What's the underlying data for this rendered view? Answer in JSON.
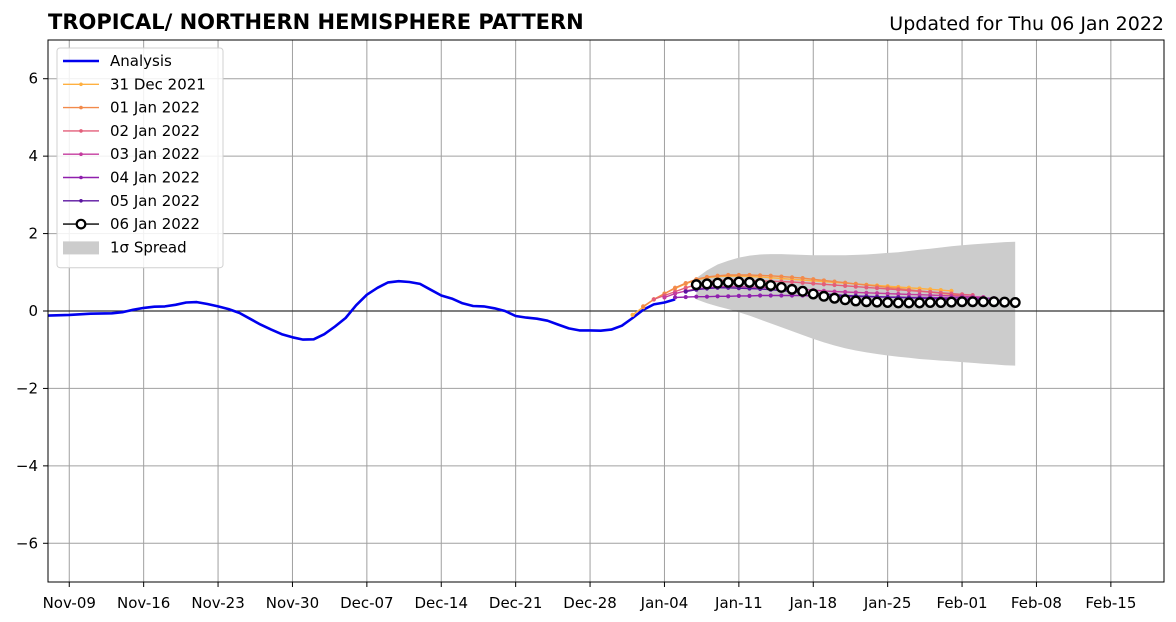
{
  "chart_data": {
    "type": "line",
    "title": "TROPICAL/ NORTHERN HEMISPHERE PATTERN",
    "subtitle": "Updated for Thu 06 Jan 2022",
    "xlabel": "",
    "ylabel": "",
    "xlim": [
      "2021-11-07",
      "2022-02-20"
    ],
    "ylim": [
      -7,
      7
    ],
    "x_ticks": [
      "Nov-09",
      "Nov-16",
      "Nov-23",
      "Nov-30",
      "Dec-07",
      "Dec-14",
      "Dec-21",
      "Dec-28",
      "Jan-04",
      "Jan-11",
      "Jan-18",
      "Jan-25",
      "Feb-01",
      "Feb-08",
      "Feb-15"
    ],
    "y_ticks": [
      -6,
      -4,
      -2,
      0,
      2,
      4,
      6
    ],
    "grid": true,
    "legend_position": "top-left",
    "analysis": {
      "name": "Analysis",
      "color": "#0000ee",
      "points": [
        [
          "2021-11-07",
          -0.12
        ],
        [
          "2021-11-09",
          -0.1
        ],
        [
          "2021-11-11",
          -0.07
        ],
        [
          "2021-11-13",
          -0.06
        ],
        [
          "2021-11-14",
          -0.03
        ],
        [
          "2021-11-15",
          0.03
        ],
        [
          "2021-11-16",
          0.08
        ],
        [
          "2021-11-17",
          0.11
        ],
        [
          "2021-11-18",
          0.12
        ],
        [
          "2021-11-19",
          0.16
        ],
        [
          "2021-11-20",
          0.22
        ],
        [
          "2021-11-21",
          0.23
        ],
        [
          "2021-11-22",
          0.18
        ],
        [
          "2021-11-23",
          0.12
        ],
        [
          "2021-11-24",
          0.05
        ],
        [
          "2021-11-25",
          -0.05
        ],
        [
          "2021-11-26",
          -0.2
        ],
        [
          "2021-11-27",
          -0.35
        ],
        [
          "2021-11-28",
          -0.48
        ],
        [
          "2021-11-29",
          -0.6
        ],
        [
          "2021-11-30",
          -0.68
        ],
        [
          "2021-12-01",
          -0.74
        ],
        [
          "2021-12-02",
          -0.73
        ],
        [
          "2021-12-03",
          -0.6
        ],
        [
          "2021-12-04",
          -0.4
        ],
        [
          "2021-12-05",
          -0.18
        ],
        [
          "2021-12-06",
          0.15
        ],
        [
          "2021-12-07",
          0.42
        ],
        [
          "2021-12-08",
          0.6
        ],
        [
          "2021-12-09",
          0.74
        ],
        [
          "2021-12-10",
          0.77
        ],
        [
          "2021-12-11",
          0.75
        ],
        [
          "2021-12-12",
          0.7
        ],
        [
          "2021-12-13",
          0.55
        ],
        [
          "2021-12-14",
          0.4
        ],
        [
          "2021-12-15",
          0.32
        ],
        [
          "2021-12-16",
          0.2
        ],
        [
          "2021-12-17",
          0.13
        ],
        [
          "2021-12-18",
          0.12
        ],
        [
          "2021-12-19",
          0.07
        ],
        [
          "2021-12-20",
          0.0
        ],
        [
          "2021-12-21",
          -0.13
        ],
        [
          "2021-12-22",
          -0.17
        ],
        [
          "2021-12-23",
          -0.2
        ],
        [
          "2021-12-24",
          -0.25
        ],
        [
          "2021-12-25",
          -0.35
        ],
        [
          "2021-12-26",
          -0.45
        ],
        [
          "2021-12-27",
          -0.5
        ],
        [
          "2021-12-28",
          -0.5
        ],
        [
          "2021-12-29",
          -0.51
        ],
        [
          "2021-12-30",
          -0.48
        ],
        [
          "2021-12-31",
          -0.38
        ],
        [
          "2022-01-01",
          -0.18
        ],
        [
          "2022-01-02",
          0.03
        ],
        [
          "2022-01-03",
          0.17
        ],
        [
          "2022-01-04",
          0.22
        ],
        [
          "2022-01-05",
          0.3
        ]
      ]
    },
    "forecasts": [
      {
        "name": "31 Dec 2021",
        "color": "#ffb040",
        "start": "2022-01-01",
        "values": [
          -0.1,
          0.1,
          0.3,
          0.45,
          0.58,
          0.7,
          0.8,
          0.86,
          0.89,
          0.9,
          0.9,
          0.89,
          0.88,
          0.86,
          0.84,
          0.82,
          0.8,
          0.78,
          0.76,
          0.74,
          0.72,
          0.7,
          0.68,
          0.66,
          0.64,
          0.62,
          0.6,
          0.58,
          0.56,
          0.54,
          0.52
        ]
      },
      {
        "name": "01 Jan 2022",
        "color": "#f28a4b",
        "start": "2022-01-02",
        "values": [
          0.12,
          0.3,
          0.45,
          0.6,
          0.72,
          0.82,
          0.88,
          0.91,
          0.93,
          0.93,
          0.93,
          0.92,
          0.91,
          0.89,
          0.87,
          0.85,
          0.82,
          0.79,
          0.76,
          0.73,
          0.7,
          0.67,
          0.64,
          0.61,
          0.58,
          0.55,
          0.52,
          0.49,
          0.46,
          0.43,
          0.4
        ]
      },
      {
        "name": "02 Jan 2022",
        "color": "#e35e7a",
        "start": "2022-01-03",
        "values": [
          0.3,
          0.4,
          0.5,
          0.6,
          0.68,
          0.74,
          0.78,
          0.8,
          0.8,
          0.79,
          0.78,
          0.77,
          0.76,
          0.75,
          0.73,
          0.71,
          0.69,
          0.67,
          0.65,
          0.63,
          0.61,
          0.59,
          0.57,
          0.55,
          0.53,
          0.51,
          0.49,
          0.47,
          0.45,
          0.43,
          0.41
        ]
      },
      {
        "name": "03 Jan 2022",
        "color": "#c43c9f",
        "start": "2022-01-04",
        "values": [
          0.35,
          0.45,
          0.52,
          0.57,
          0.6,
          0.62,
          0.63,
          0.63,
          0.62,
          0.61,
          0.6,
          0.59,
          0.58,
          0.56,
          0.54,
          0.52,
          0.5,
          0.49,
          0.48,
          0.47,
          0.46,
          0.45,
          0.44,
          0.43,
          0.42,
          0.41,
          0.4,
          0.39,
          0.38,
          0.37,
          0.36
        ]
      },
      {
        "name": "04 Jan 2022",
        "color": "#8f1fad",
        "start": "2022-01-05",
        "values": [
          0.35,
          0.36,
          0.37,
          0.37,
          0.38,
          0.38,
          0.39,
          0.39,
          0.4,
          0.4,
          0.4,
          0.4,
          0.4,
          0.39,
          0.39,
          0.38,
          0.38,
          0.37,
          0.37,
          0.36,
          0.36,
          0.36,
          0.35,
          0.35,
          0.35,
          0.34,
          0.34,
          0.34,
          0.33,
          0.33,
          0.33
        ]
      },
      {
        "name": "05 Jan 2022",
        "color": "#5b15a0",
        "start": "2022-01-06",
        "values": [
          0.5,
          0.55,
          0.58,
          0.6,
          0.6,
          0.59,
          0.58,
          0.57,
          0.55,
          0.53,
          0.5,
          0.48,
          0.46,
          0.44,
          0.42,
          0.4,
          0.39,
          0.38,
          0.37,
          0.36,
          0.35,
          0.34,
          0.33,
          0.32,
          0.31,
          0.3,
          0.29,
          0.29,
          0.28,
          0.28,
          0.27
        ]
      }
    ],
    "current": {
      "name": "06 Jan 2022",
      "color": "#000000",
      "start": "2022-01-07",
      "values": [
        0.68,
        0.7,
        0.72,
        0.74,
        0.75,
        0.74,
        0.71,
        0.66,
        0.61,
        0.56,
        0.51,
        0.44,
        0.38,
        0.33,
        0.29,
        0.26,
        0.24,
        0.23,
        0.22,
        0.21,
        0.21,
        0.21,
        0.22,
        0.22,
        0.23,
        0.24,
        0.24,
        0.24,
        0.24,
        0.23,
        0.22
      ]
    },
    "spread": {
      "name": "1σ Spread",
      "color": "#cccccc",
      "start": "2022-01-07",
      "upper": [
        0.85,
        1.05,
        1.2,
        1.3,
        1.38,
        1.43,
        1.46,
        1.47,
        1.47,
        1.46,
        1.45,
        1.44,
        1.44,
        1.44,
        1.44,
        1.45,
        1.46,
        1.48,
        1.5,
        1.52,
        1.55,
        1.58,
        1.61,
        1.64,
        1.67,
        1.7,
        1.72,
        1.74,
        1.76,
        1.78,
        1.79
      ],
      "lower": [
        0.3,
        0.2,
        0.12,
        0.05,
        -0.03,
        -0.12,
        -0.22,
        -0.32,
        -0.42,
        -0.52,
        -0.62,
        -0.72,
        -0.81,
        -0.89,
        -0.96,
        -1.02,
        -1.07,
        -1.11,
        -1.15,
        -1.18,
        -1.21,
        -1.24,
        -1.26,
        -1.28,
        -1.3,
        -1.32,
        -1.34,
        -1.36,
        -1.38,
        -1.4,
        -1.41
      ]
    }
  }
}
